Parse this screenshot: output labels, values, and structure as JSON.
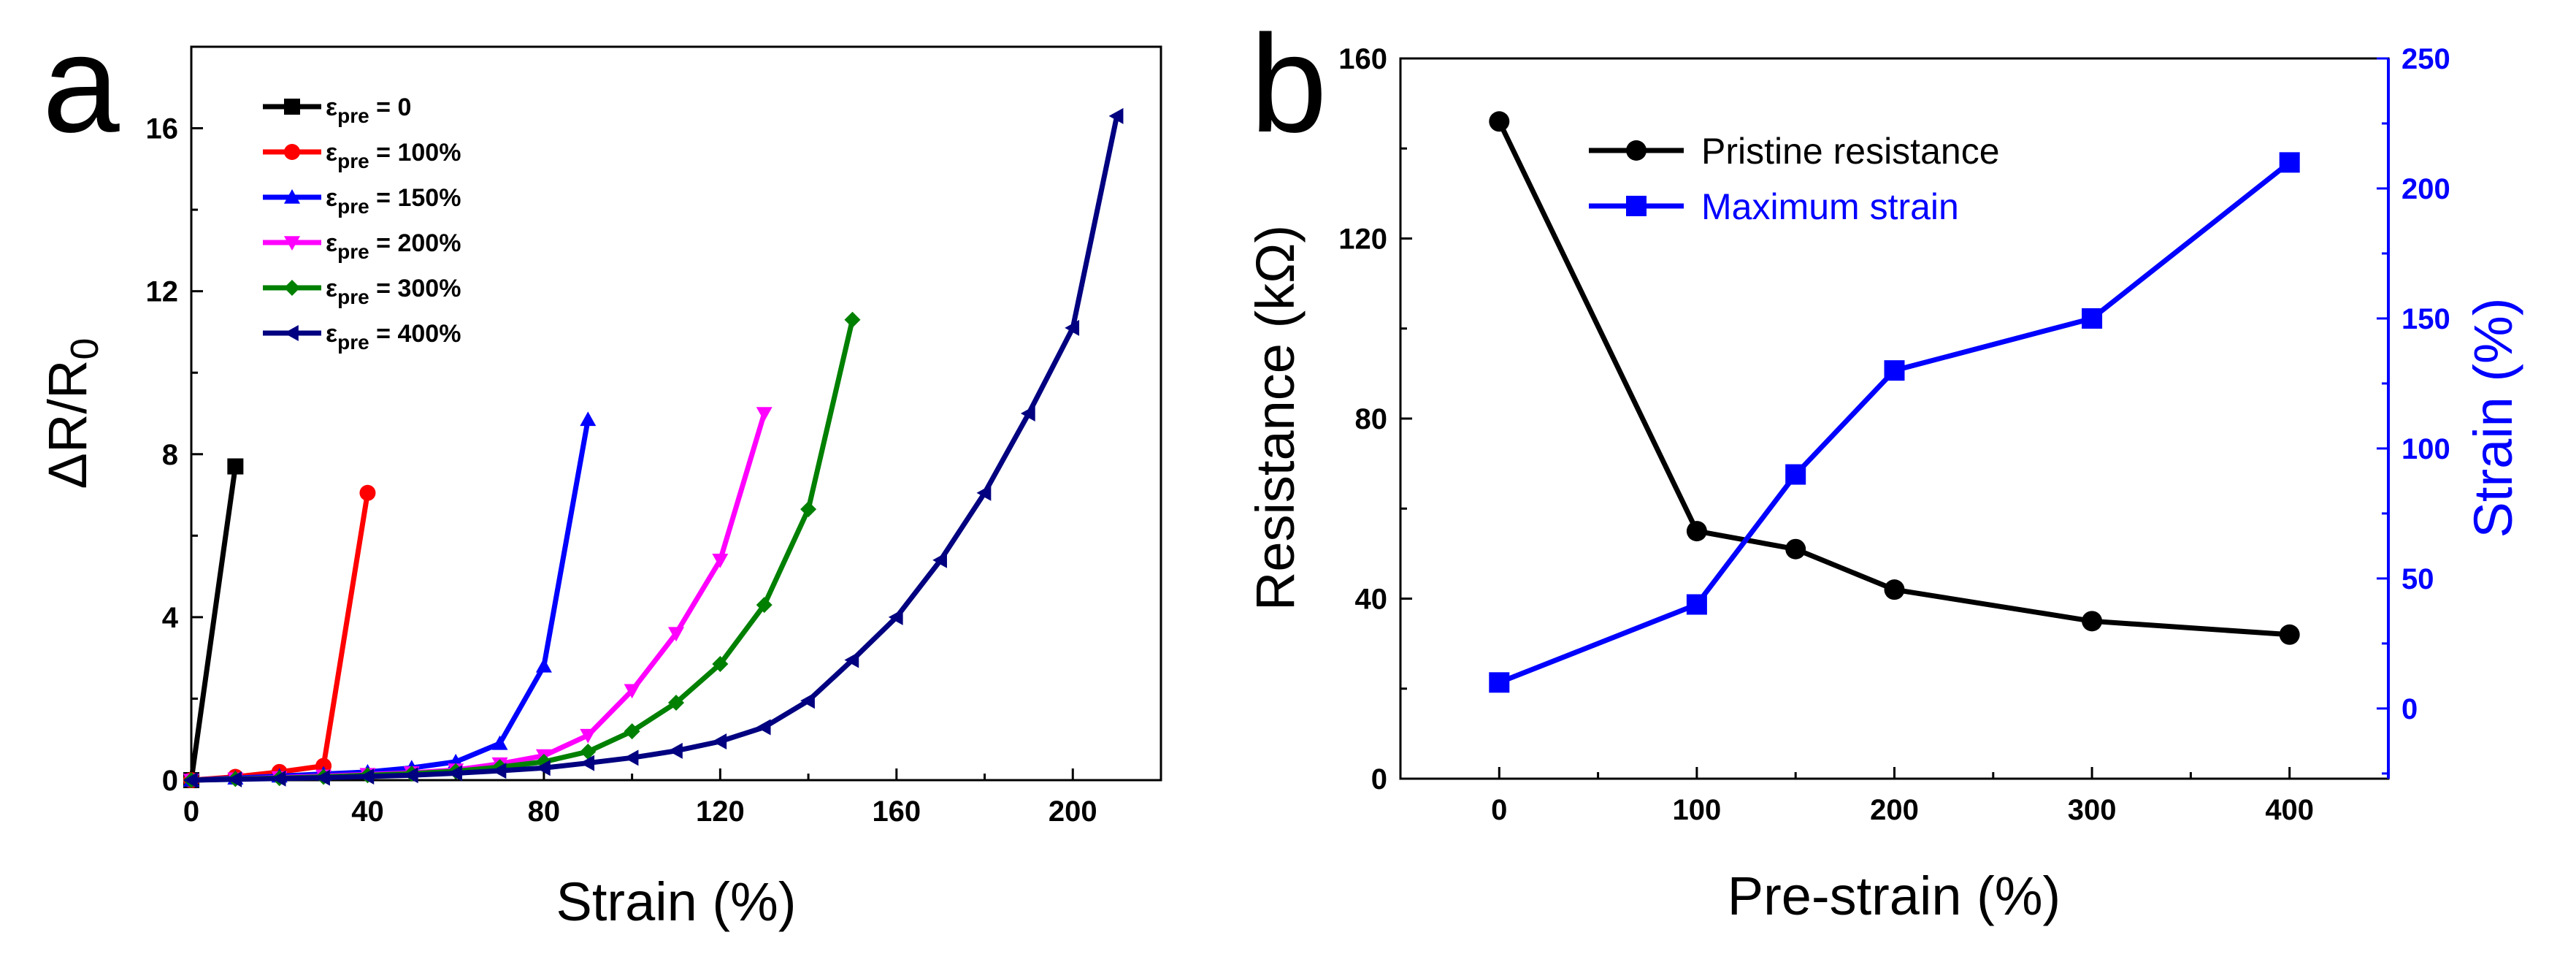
{
  "chart_data": [
    {
      "panel": "a",
      "type": "line",
      "xlabel_main": "Strain",
      "xlabel_unit": "(%)",
      "ylabel": "ΔR/R0",
      "xlim": [
        0,
        220
      ],
      "ylim": [
        0,
        18
      ],
      "xticks": [
        0,
        40,
        80,
        120,
        160,
        200
      ],
      "yticks": [
        0,
        4,
        8,
        12,
        16
      ],
      "legend_position": "top-left",
      "series": [
        {
          "name": "εpre = 0",
          "sym": "ε",
          "sub": "pre",
          "rest": " = 0",
          "color": "#000000",
          "marker": "square",
          "x": [
            0,
            10
          ],
          "y": [
            0,
            7.7
          ]
        },
        {
          "name": "εpre = 100%",
          "sym": "ε",
          "sub": "pre",
          "rest": " = 100%",
          "color": "#ff0000",
          "marker": "circle",
          "x": [
            0,
            10,
            20,
            30,
            40
          ],
          "y": [
            0,
            0.08,
            0.2,
            0.35,
            7.05
          ]
        },
        {
          "name": "εpre = 150%",
          "sym": "ε",
          "sub": "pre",
          "rest": " = 150%",
          "color": "#0000ff",
          "marker": "triangle-up",
          "x": [
            0,
            10,
            20,
            30,
            40,
            50,
            60,
            70,
            80,
            90
          ],
          "y": [
            0,
            0.05,
            0.1,
            0.15,
            0.2,
            0.3,
            0.45,
            0.9,
            2.8,
            8.85
          ]
        },
        {
          "name": "εpre = 200%",
          "sym": "ε",
          "sub": "pre",
          "rest": " = 200%",
          "color": "#ff00ff",
          "marker": "triangle-down",
          "x": [
            0,
            10,
            20,
            30,
            40,
            50,
            60,
            70,
            80,
            90,
            100,
            110,
            120,
            130
          ],
          "y": [
            0,
            0.03,
            0.06,
            0.1,
            0.14,
            0.18,
            0.25,
            0.4,
            0.6,
            1.1,
            2.2,
            3.6,
            5.4,
            9.0
          ]
        },
        {
          "name": "εpre = 300%",
          "sym": "ε",
          "sub": "pre",
          "rest": " = 300%",
          "color": "#008000",
          "marker": "diamond",
          "x": [
            0,
            10,
            20,
            30,
            40,
            50,
            60,
            70,
            80,
            90,
            100,
            110,
            120,
            130,
            140,
            150
          ],
          "y": [
            0,
            0.03,
            0.05,
            0.08,
            0.12,
            0.16,
            0.22,
            0.32,
            0.45,
            0.7,
            1.2,
            1.9,
            2.85,
            4.3,
            6.65,
            11.3
          ]
        },
        {
          "name": "εpre = 400%",
          "sym": "ε",
          "sub": "pre",
          "rest": " = 400%",
          "color": "#000080",
          "marker": "triangle-left",
          "x": [
            0,
            10,
            20,
            30,
            40,
            50,
            60,
            70,
            80,
            90,
            100,
            110,
            120,
            130,
            140,
            150,
            160,
            170,
            180,
            190,
            200,
            210
          ],
          "y": [
            0,
            0.02,
            0.04,
            0.06,
            0.09,
            0.12,
            0.17,
            0.23,
            0.3,
            0.42,
            0.55,
            0.72,
            0.95,
            1.3,
            1.95,
            2.95,
            4.0,
            5.4,
            7.05,
            9.0,
            11.1,
            16.3
          ]
        }
      ]
    },
    {
      "panel": "b",
      "type": "line",
      "xlabel": "Pre-strain (%)",
      "ylabel_left": "Resistance (kΩ)",
      "ylabel_right": "Strain (%)",
      "xlim": [
        -50,
        450
      ],
      "ylim_left": [
        0,
        160
      ],
      "ylim_right": [
        -27,
        250
      ],
      "xticks": [
        0,
        100,
        200,
        300,
        400
      ],
      "yticks_left": [
        0,
        40,
        80,
        120,
        160
      ],
      "yticks_right": [
        0,
        50,
        100,
        150,
        200,
        250
      ],
      "legend_position": "top-center",
      "series": [
        {
          "name": "Pristine resistance",
          "axis": "left",
          "color": "#000000",
          "text_color": "#000000",
          "marker": "circle",
          "x": [
            0,
            100,
            150,
            200,
            300,
            400
          ],
          "y": [
            146,
            55,
            51,
            42,
            35,
            32
          ]
        },
        {
          "name": "Maximum strain",
          "axis": "right",
          "color": "#0000ff",
          "text_color": "#0000ff",
          "marker": "square",
          "x": [
            0,
            100,
            150,
            200,
            300,
            400
          ],
          "y": [
            10,
            40,
            90,
            130,
            150,
            210
          ]
        }
      ]
    }
  ],
  "panel_labels": {
    "a": "a",
    "b": "b"
  }
}
